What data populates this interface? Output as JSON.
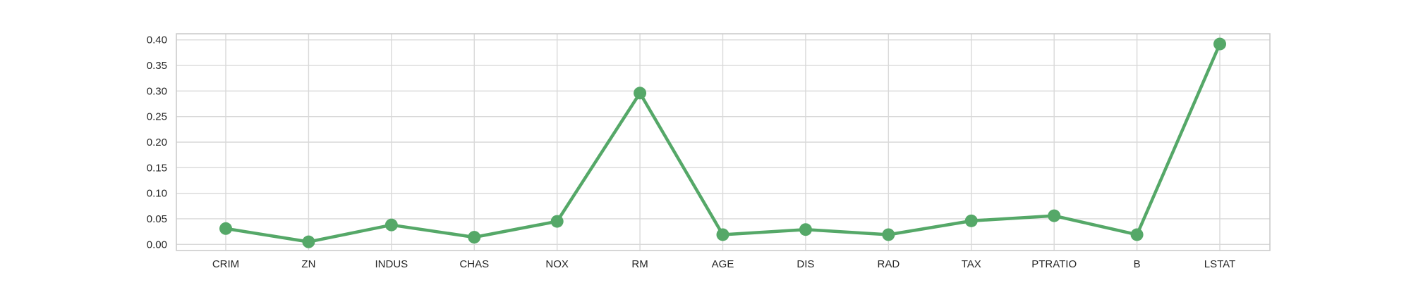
{
  "chart_data": {
    "type": "line",
    "title": "",
    "xlabel": "",
    "ylabel": "",
    "categories": [
      "CRIM",
      "ZN",
      "INDUS",
      "CHAS",
      "NOX",
      "RM",
      "AGE",
      "DIS",
      "RAD",
      "TAX",
      "PTRATIO",
      "B",
      "LSTAT"
    ],
    "series": [
      {
        "values": [
          0.031,
          0.005,
          0.038,
          0.014,
          0.045,
          0.296,
          0.019,
          0.029,
          0.019,
          0.046,
          0.056,
          0.019,
          0.392
        ]
      }
    ],
    "ylim": [
      -0.012,
      0.412
    ],
    "yticks": [
      "0.00",
      "0.05",
      "0.10",
      "0.15",
      "0.20",
      "0.25",
      "0.30",
      "0.35",
      "0.40"
    ],
    "grid": true,
    "line_color": "#55a868",
    "grid_color": "#d9d9d9",
    "frame_color": "#cccccc"
  }
}
